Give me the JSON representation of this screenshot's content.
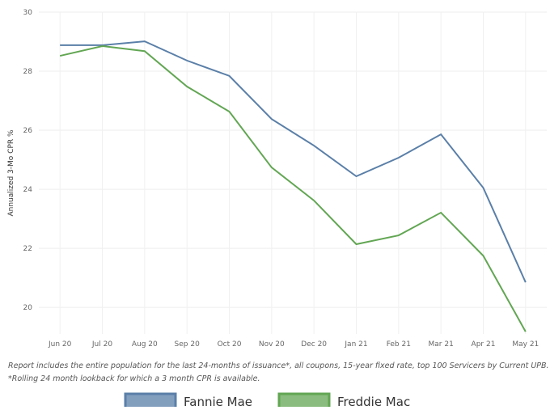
{
  "chart_data": {
    "type": "line",
    "y_label": "Annualized 3-Mo CPR %",
    "categories": [
      "Jun 20",
      "Jul 20",
      "Aug 20",
      "Sep 20",
      "Oct 20",
      "Nov 20",
      "Dec 20",
      "Jan 21",
      "Feb 21",
      "Mar 21",
      "Apr 21",
      "May 21"
    ],
    "series": [
      {
        "name": "Fannie Mae",
        "color": "#5a7fa8",
        "values": [
          28.88,
          28.88,
          29.01,
          28.36,
          27.84,
          26.38,
          25.48,
          24.44,
          25.07,
          25.86,
          24.05,
          20.85
        ]
      },
      {
        "name": "Freddie Mac",
        "color": "#62a653",
        "values": [
          28.52,
          28.85,
          28.68,
          27.48,
          26.63,
          24.74,
          23.62,
          22.14,
          22.44,
          23.21,
          21.75,
          19.18
        ]
      }
    ],
    "ylim": [
      19.1,
      30
    ],
    "yticks": [
      20,
      22,
      24,
      26,
      28,
      30
    ],
    "grid": true,
    "notes": [
      "Report includes the entire population for the last 24-months of issuance*, all coupons, 15-year fixed rate, top 100 Servicers by Current UPB.",
      "*Rolling 24 month lookback for which a 3 month CPR is available."
    ],
    "legend": "bottom"
  }
}
